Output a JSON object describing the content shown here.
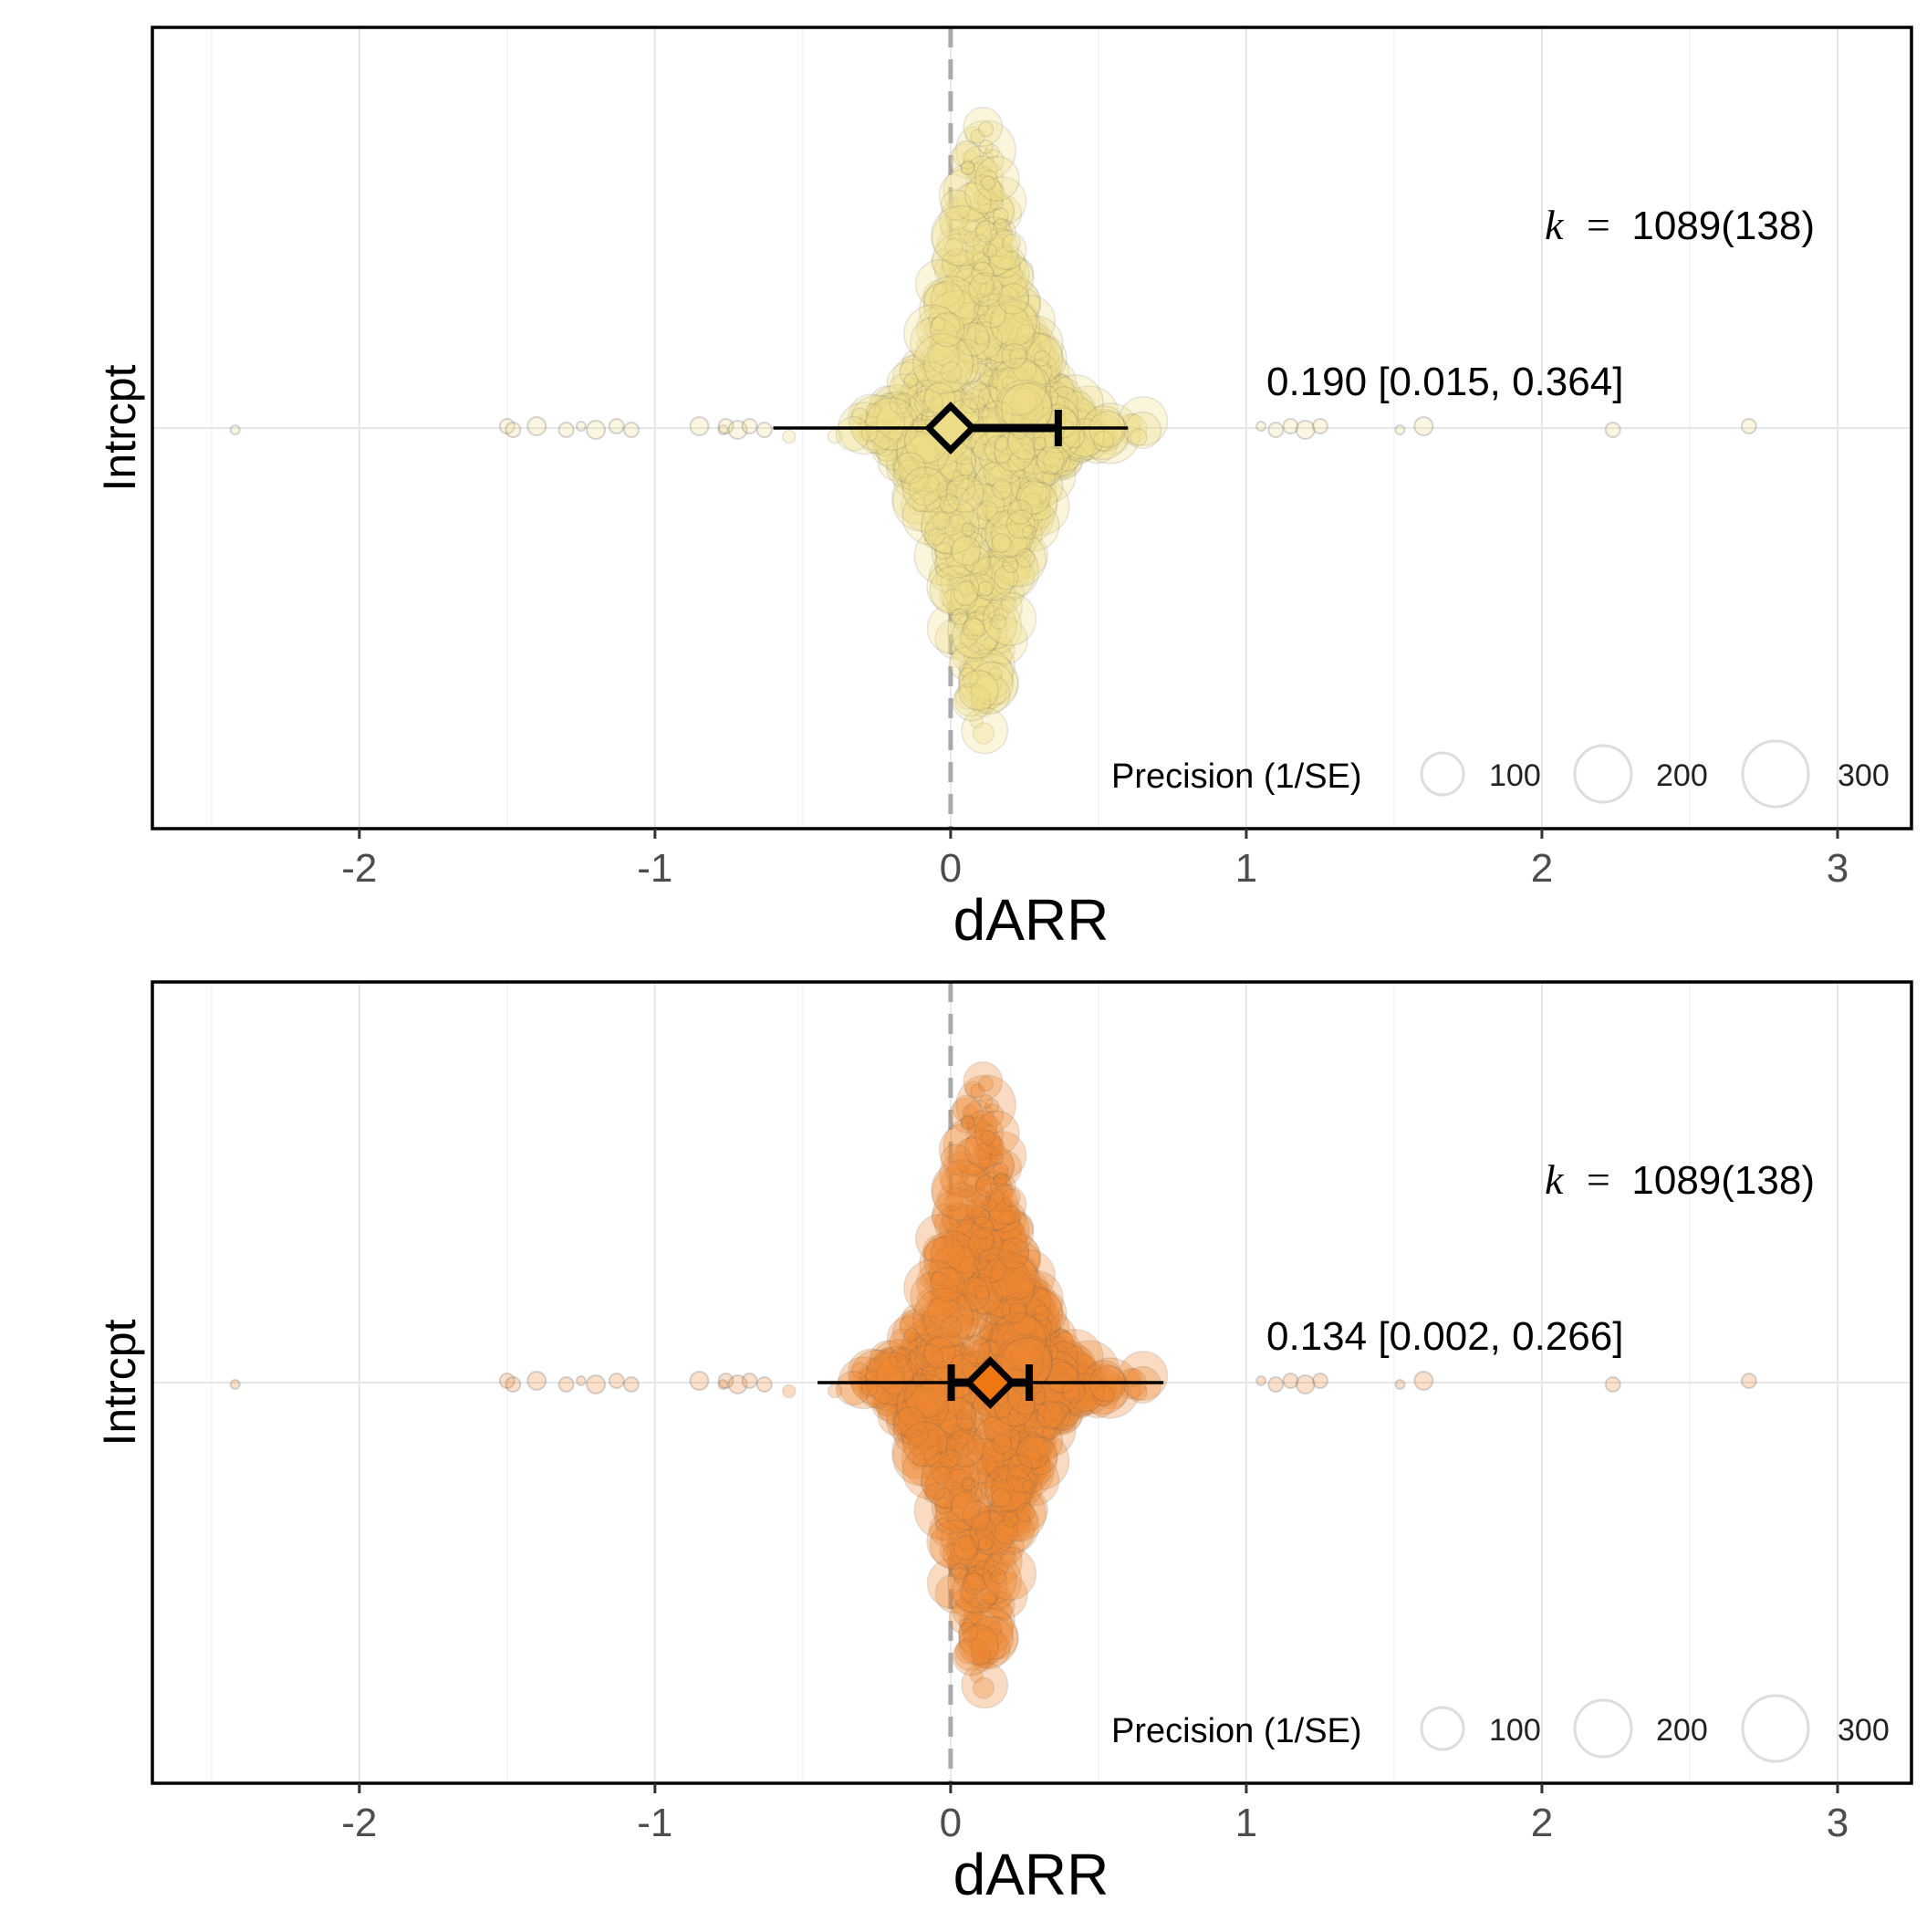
{
  "chart_data": [
    {
      "type": "orchard",
      "xlabel": "dARR",
      "ylabel": "Intrcpt",
      "x_ticks": [
        -2,
        -1,
        0,
        1,
        2,
        3
      ],
      "xlim": [
        -2.7,
        3.25
      ],
      "reference_line_x": 0,
      "point_color": "#eedd88",
      "diamond_fill": "#eedd88",
      "estimate": 0.19,
      "ci": [
        0.015,
        0.364
      ],
      "prediction_interval": [
        -0.6,
        0.6
      ],
      "annotation_estimate": "0.190 [0.015, 0.364]",
      "k_label": {
        "k": "k",
        "eq": "=",
        "value": "1089(138)"
      },
      "legend": {
        "title": "Precision (1/SE)",
        "sizes": [
          100,
          200,
          300
        ]
      },
      "outlier_points_x": [
        -2.42,
        -1.5,
        -1.48,
        -1.4,
        -1.3,
        -1.25,
        -1.2,
        -1.13,
        -1.08,
        -0.85,
        -0.77,
        -0.76,
        -0.72,
        -0.68,
        -0.63,
        1.05,
        1.1,
        1.15,
        1.2,
        1.25,
        1.52,
        1.6,
        2.24,
        2.7
      ]
    },
    {
      "type": "orchard",
      "xlabel": "dARR",
      "ylabel": "Intrcpt",
      "x_ticks": [
        -2,
        -1,
        0,
        1,
        2,
        3
      ],
      "xlim": [
        -2.7,
        3.25
      ],
      "reference_line_x": 0,
      "point_color": "#ee8833",
      "diamond_fill": "#ee7711",
      "estimate": 0.134,
      "ci": [
        0.002,
        0.266
      ],
      "prediction_interval": [
        -0.45,
        0.72
      ],
      "annotation_estimate": "0.134 [0.002, 0.266]",
      "k_label": {
        "k": "k",
        "eq": "=",
        "value": "1089(138)"
      },
      "legend": {
        "title": "Precision (1/SE)",
        "sizes": [
          100,
          200,
          300
        ]
      },
      "outlier_points_x": [
        -2.42,
        -1.5,
        -1.48,
        -1.4,
        -1.3,
        -1.25,
        -1.2,
        -1.13,
        -1.08,
        -0.85,
        -0.77,
        -0.76,
        -0.72,
        -0.68,
        -0.63,
        1.05,
        1.1,
        1.15,
        1.2,
        1.25,
        1.52,
        1.6,
        2.24,
        2.7
      ]
    }
  ]
}
